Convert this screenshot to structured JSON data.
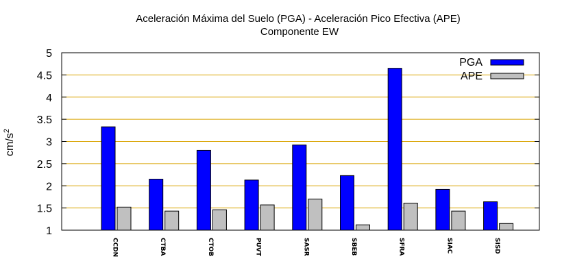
{
  "chart_data": {
    "type": "bar",
    "title": "Aceleración Máxima del Suelo (PGA) -  Aceleración Pico Efectiva (APE)",
    "subtitle": "Componente EW",
    "xlabel": "",
    "ylabel": "cm/s",
    "ylabel_sup": "2",
    "ylim": [
      1,
      5
    ],
    "yticks": [
      "1",
      "1.5",
      "2",
      "2.5",
      "3",
      "3.5",
      "4",
      "4.5",
      "5"
    ],
    "categories": [
      "CCDN",
      "CTBA",
      "CTOB",
      "PUVT",
      "SASR",
      "SBEB",
      "SFRA",
      "SIAC",
      "SISD"
    ],
    "grid": true,
    "legend_position": "top-right",
    "series": [
      {
        "name": "PGA",
        "color": "#0000ff",
        "values": [
          3.33,
          2.15,
          2.8,
          2.13,
          2.92,
          2.23,
          4.65,
          1.92,
          1.64
        ]
      },
      {
        "name": "APE",
        "color": "#c0c0c0",
        "values": [
          1.52,
          1.43,
          1.46,
          1.57,
          1.7,
          1.12,
          1.61,
          1.43,
          1.15
        ]
      }
    ]
  }
}
